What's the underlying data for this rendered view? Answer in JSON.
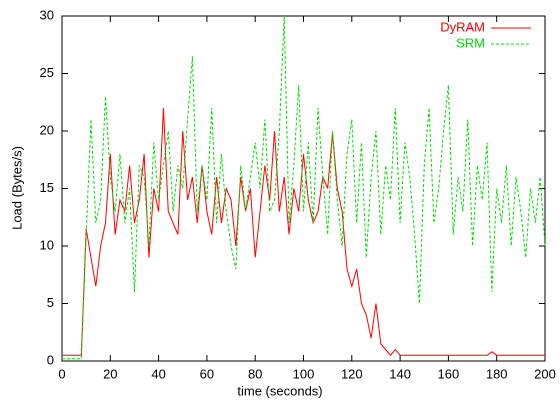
{
  "chart_data": {
    "type": "line",
    "xlabel": "time (seconds)",
    "ylabel": "Load (Bytes/s)",
    "x": [
      0,
      2,
      4,
      6,
      8,
      10,
      12,
      14,
      16,
      18,
      20,
      22,
      24,
      26,
      28,
      30,
      32,
      34,
      36,
      38,
      40,
      42,
      44,
      46,
      48,
      50,
      52,
      54,
      56,
      58,
      60,
      62,
      64,
      66,
      68,
      70,
      72,
      74,
      76,
      78,
      80,
      82,
      84,
      86,
      88,
      90,
      92,
      94,
      96,
      98,
      100,
      102,
      104,
      106,
      108,
      110,
      112,
      114,
      116,
      118,
      120,
      122,
      124,
      126,
      128,
      130,
      132,
      134,
      136,
      138,
      140,
      142,
      144,
      146,
      148,
      150,
      152,
      154,
      156,
      158,
      160,
      162,
      164,
      166,
      168,
      170,
      172,
      174,
      176,
      178,
      180,
      182,
      184,
      186,
      188,
      190,
      192,
      194,
      196,
      198,
      200
    ],
    "series": [
      {
        "name": "DyRAM",
        "color": "#ff0000",
        "dash": false,
        "values": [
          0.5,
          0.5,
          0.5,
          0.5,
          0.5,
          11.5,
          9,
          6.5,
          10,
          12,
          18,
          11,
          14,
          13,
          17,
          12,
          14,
          18,
          9,
          15,
          13,
          22,
          13,
          12,
          11,
          20,
          14,
          16,
          12,
          17,
          13,
          11,
          16,
          12,
          15,
          14,
          10,
          16,
          13,
          15,
          9,
          13,
          17,
          14,
          20,
          13,
          16,
          11,
          15,
          13,
          18,
          14,
          12,
          13,
          16,
          15,
          19.8,
          15,
          13,
          8,
          6.5,
          8,
          5,
          4,
          2,
          5,
          1.5,
          1,
          0.5,
          1,
          0.5,
          0.5,
          0.5,
          0.5,
          0.5,
          0.5,
          0.5,
          0.5,
          0.5,
          0.5,
          0.5,
          0.5,
          0.5,
          0.5,
          0.5,
          0.5,
          0.5,
          0.5,
          0.5,
          0.8,
          0.5,
          0.5,
          0.5,
          0.5,
          0.5,
          0.5,
          0.5,
          0.5,
          0.5,
          0.5,
          0.5
        ]
      },
      {
        "name": "SRM",
        "color": "#00dd00",
        "dash": true,
        "values": [
          0.2,
          0.2,
          0.2,
          0.2,
          0.2,
          11,
          21,
          12,
          14,
          23,
          16,
          13,
          18,
          12,
          15,
          6,
          17,
          16,
          10,
          19,
          14,
          17,
          20,
          13,
          17,
          15,
          21,
          26.5,
          13,
          17,
          14,
          22,
          12,
          18,
          13,
          10,
          8,
          17,
          13,
          16,
          19,
          15,
          21,
          13,
          14,
          20,
          30,
          12,
          17,
          24,
          13,
          19,
          12,
          22,
          16,
          11,
          20,
          14,
          10,
          18,
          21,
          12,
          19,
          9,
          16,
          20,
          11,
          17,
          14,
          22,
          12,
          19,
          16,
          11,
          5,
          17,
          22,
          12,
          15,
          20,
          24,
          11,
          16,
          13,
          21,
          10,
          17,
          14,
          19,
          6,
          15,
          12,
          17,
          10,
          16,
          13,
          9,
          15,
          12,
          16,
          10
        ]
      }
    ],
    "xlim": [
      0,
      200
    ],
    "xticks": [
      0,
      20,
      40,
      60,
      80,
      100,
      120,
      140,
      160,
      180,
      200
    ],
    "ylim": [
      0,
      30
    ],
    "yticks": [
      0,
      5,
      10,
      15,
      20,
      25,
      30
    ],
    "legend": "upper right"
  }
}
